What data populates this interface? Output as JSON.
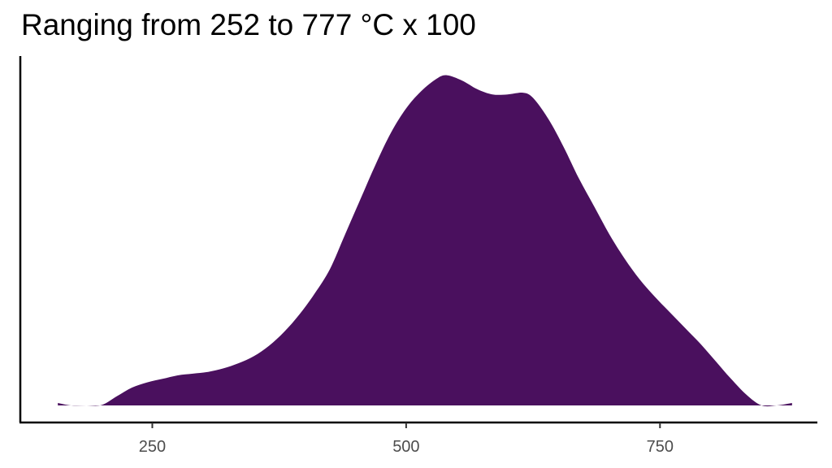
{
  "chart_data": {
    "type": "area",
    "subtype": "density",
    "title": "Ranging from 252 to 777 °C x 100",
    "xlabel": "",
    "ylabel": "",
    "xlim": [
      120,
      905
    ],
    "ylim": [
      0,
      1.05
    ],
    "grid": false,
    "legend": "none",
    "fill_color": "#4A105E",
    "x_ticks": [
      250,
      500,
      750
    ],
    "y_ticks": [],
    "series": [
      {
        "x": [
          157,
          170,
          185,
          200,
          215,
          230,
          245,
          260,
          275,
          290,
          305,
          320,
          335,
          350,
          365,
          380,
          395,
          410,
          425,
          440,
          455,
          470,
          485,
          500,
          515,
          530,
          540,
          555,
          570,
          585,
          600,
          615,
          625,
          640,
          655,
          670,
          685,
          700,
          715,
          730,
          745,
          760,
          775,
          790,
          805,
          820,
          835,
          850,
          865,
          880,
          877
        ],
        "y": [
          0.005,
          0.015,
          0.03,
          0.05,
          0.075,
          0.1,
          0.115,
          0.125,
          0.135,
          0.14,
          0.145,
          0.155,
          0.17,
          0.19,
          0.22,
          0.26,
          0.31,
          0.37,
          0.44,
          0.54,
          0.64,
          0.74,
          0.83,
          0.9,
          0.95,
          0.985,
          0.995,
          0.98,
          0.955,
          0.94,
          0.94,
          0.945,
          0.93,
          0.87,
          0.79,
          0.7,
          0.62,
          0.54,
          0.47,
          0.41,
          0.36,
          0.315,
          0.27,
          0.225,
          0.175,
          0.125,
          0.08,
          0.04,
          0.015,
          0.005,
          0.005
        ]
      }
    ]
  }
}
